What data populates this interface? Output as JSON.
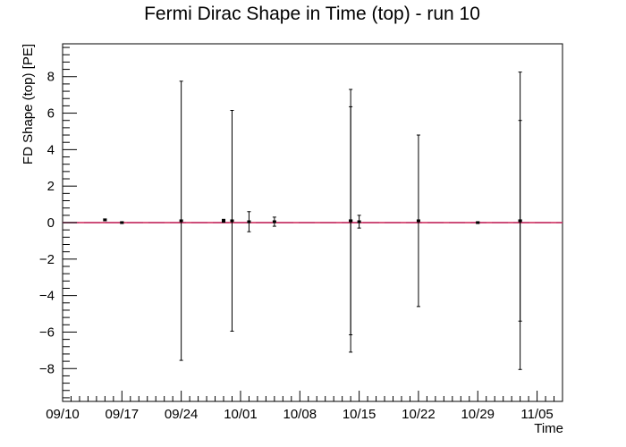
{
  "chart_data": {
    "type": "scatter",
    "title": "Fermi Dirac Shape in Time (top) - run 10",
    "xlabel": "Time",
    "ylabel": "FD Shape (top) [PE]",
    "x_is_date": true,
    "xlim": [
      "2023-09-10",
      "2023-11-08"
    ],
    "ylim": [
      -9.8,
      9.8
    ],
    "x_ticks": [
      "09/10",
      "09/17",
      "09/24",
      "10/01",
      "10/08",
      "10/15",
      "10/22",
      "10/29",
      "11/05"
    ],
    "y_ticks": [
      -8,
      -6,
      -4,
      -2,
      0,
      2,
      4,
      6,
      8
    ],
    "grid": false,
    "reference_lines": [
      {
        "y": 0,
        "color": "#a0a0d0",
        "style": "dashed"
      },
      {
        "y": 0,
        "color": "#cc2255",
        "style": "solid"
      }
    ],
    "series": [
      {
        "marker_color": "#000000",
        "points": [
          {
            "x": "2023-09-15",
            "y": 0.15,
            "err": 0.05
          },
          {
            "x": "2023-09-17",
            "y": 0.0,
            "err": 0.05
          },
          {
            "x": "2023-09-24",
            "y": 0.1,
            "err": 7.65
          },
          {
            "x": "2023-09-29",
            "y": 0.1,
            "err": 0.08
          },
          {
            "x": "2023-09-30",
            "y": 0.1,
            "err": 6.05
          },
          {
            "x": "2023-10-02",
            "y": 0.05,
            "err": 0.55
          },
          {
            "x": "2023-10-05",
            "y": 0.05,
            "err": 0.25
          },
          {
            "x": "2023-10-14",
            "y": 0.1,
            "err": 6.25
          },
          {
            "x": "2023-10-14",
            "y": 0.1,
            "err": 7.2
          },
          {
            "x": "2023-10-15",
            "y": 0.05,
            "err": 0.35
          },
          {
            "x": "2023-10-22",
            "y": 0.1,
            "err": 4.7
          },
          {
            "x": "2023-10-29",
            "y": 0.0,
            "err": 0.05
          },
          {
            "x": "2023-11-03",
            "y": 0.1,
            "err": 8.15
          },
          {
            "x": "2023-11-03",
            "y": 0.1,
            "err": 5.5
          }
        ]
      }
    ]
  }
}
